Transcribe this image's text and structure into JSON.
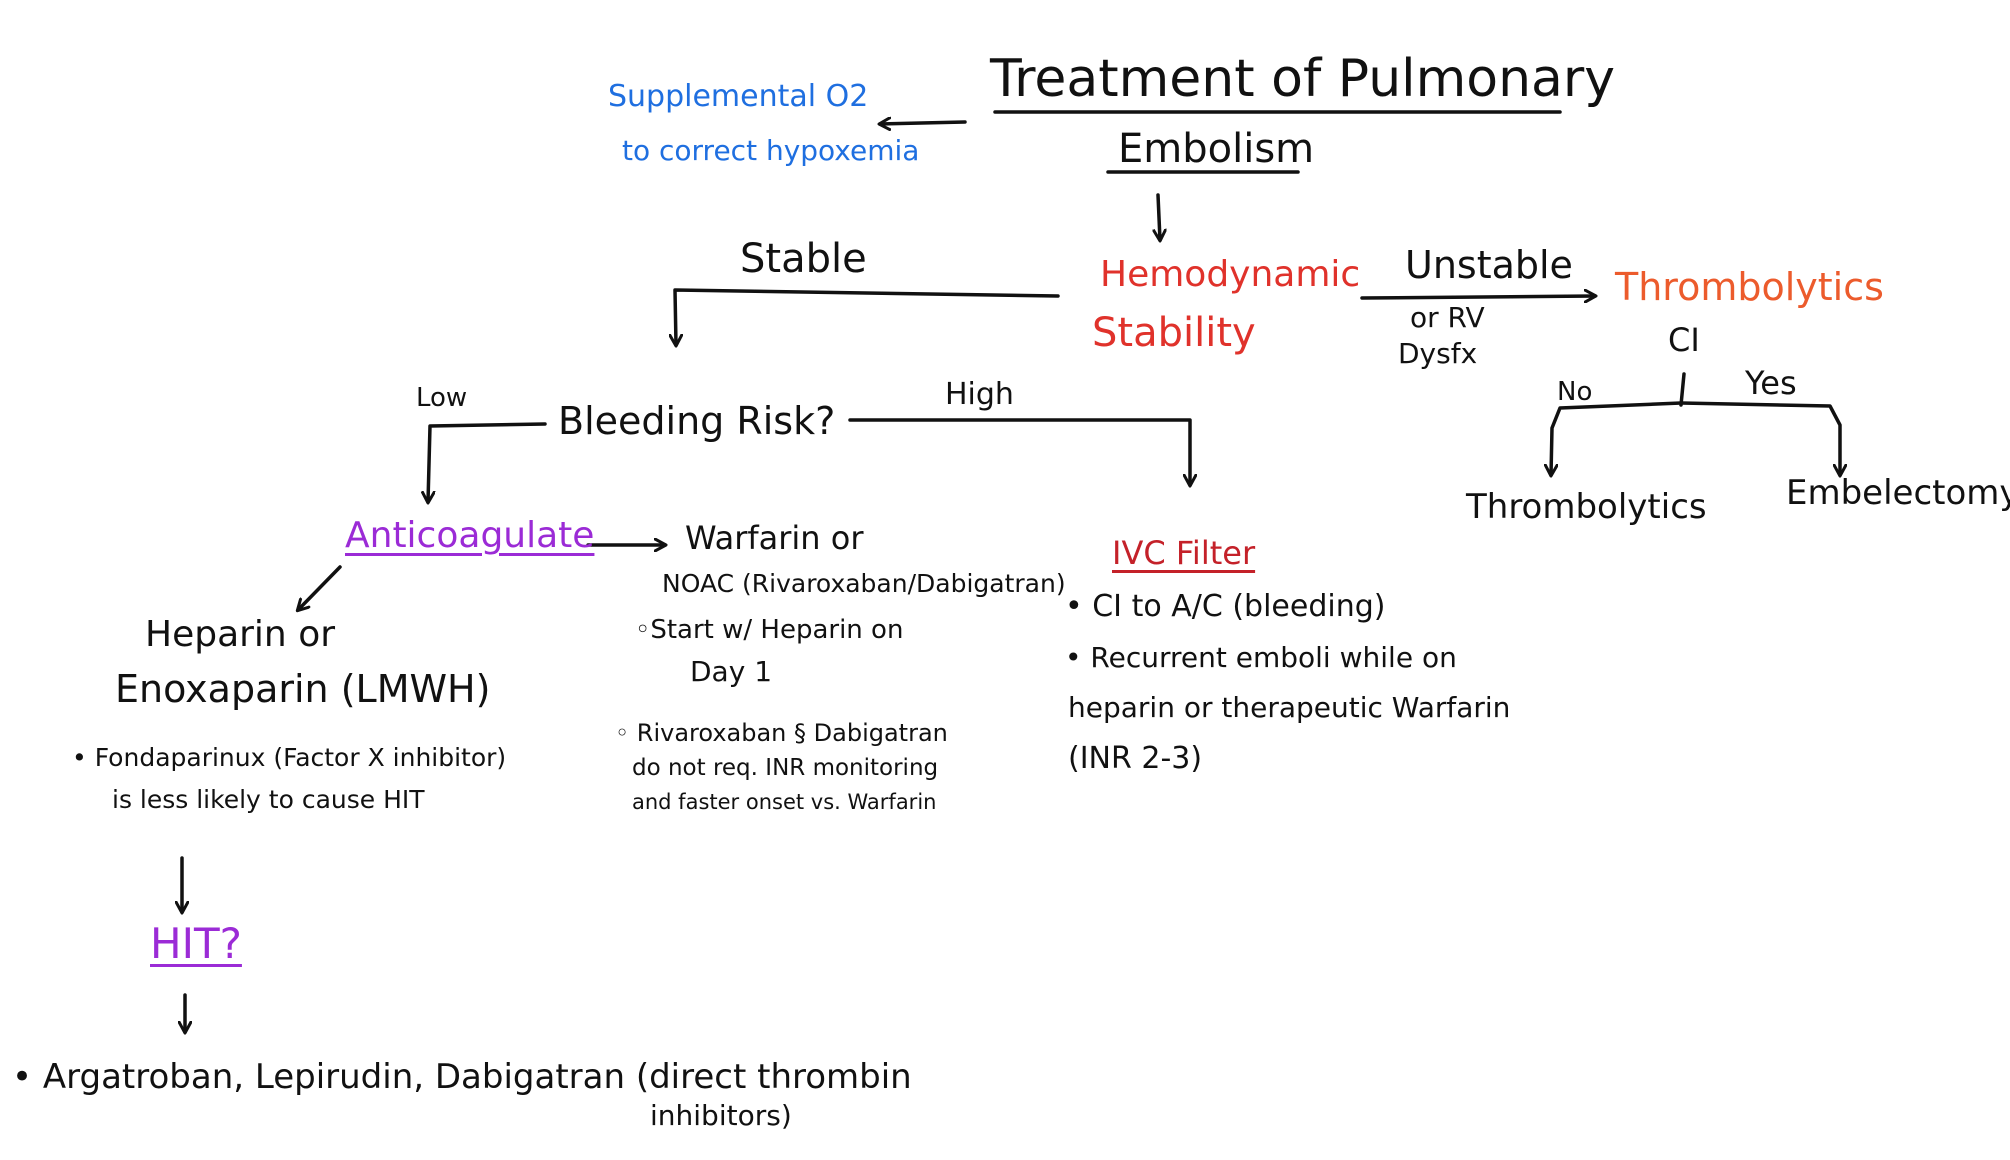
{
  "title": {
    "line1": "Treatment of Pulmonary",
    "line2": "Embolism"
  },
  "oxygen": {
    "line1": "Supplemental O2",
    "line2": "to correct hypoxemia"
  },
  "hemodynamic": {
    "line1": "Hemodynamic",
    "line2": "Stability"
  },
  "stable_label": "Stable",
  "unstable": {
    "line1": "Unstable",
    "line2": "or RV",
    "line3": "Dysfx"
  },
  "thrombolytics_top": "Thrombolytics",
  "ci_label": "CI",
  "no_label": "No",
  "yes_label": "Yes",
  "thrombolytics_leaf": "Thrombolytics",
  "embolectomy": "Embelectomy",
  "bleeding_risk": "Bleeding Risk?",
  "low_label": "Low",
  "high_label": "High",
  "anticoagulate": "Anticoagulate",
  "warfarin": {
    "line1": "Warfarin or",
    "line2": "NOAC (Rivaroxaban/Dabigatran)",
    "line3": "◦Start w/ Heparin on",
    "line4": "Day 1"
  },
  "noac_note": {
    "line1": "◦ Rivaroxaban § Dabigatran",
    "line2": "do not req. INR monitoring",
    "line3": "and faster onset vs. Warfarin"
  },
  "heparin": {
    "line1": "Heparin or",
    "line2": "Enoxaparin (LMWH)"
  },
  "fondaparinux": {
    "line1": "• Fondaparinux (Factor X inhibitor)",
    "line2": "is less likely to cause HIT"
  },
  "hit": "HIT?",
  "dti": {
    "line1": "• Argatroban, Lepirudin, Dabigatran (direct thrombin",
    "line2": "inhibitors)"
  },
  "ivc": {
    "title": "IVC Filter",
    "line1": "• CI to A/C (bleeding)",
    "line2": "• Recurrent emboli while on",
    "line3": "heparin or therapeutic Warfarin",
    "line4": "(INR 2-3)"
  },
  "colors": {
    "oxygen": "#1f6fe0",
    "hemodynamic": "#e0322b",
    "thrombolytics": "#ec5b2c",
    "anticoagulate": "#9b2bd6",
    "ivc": "#c42129"
  }
}
